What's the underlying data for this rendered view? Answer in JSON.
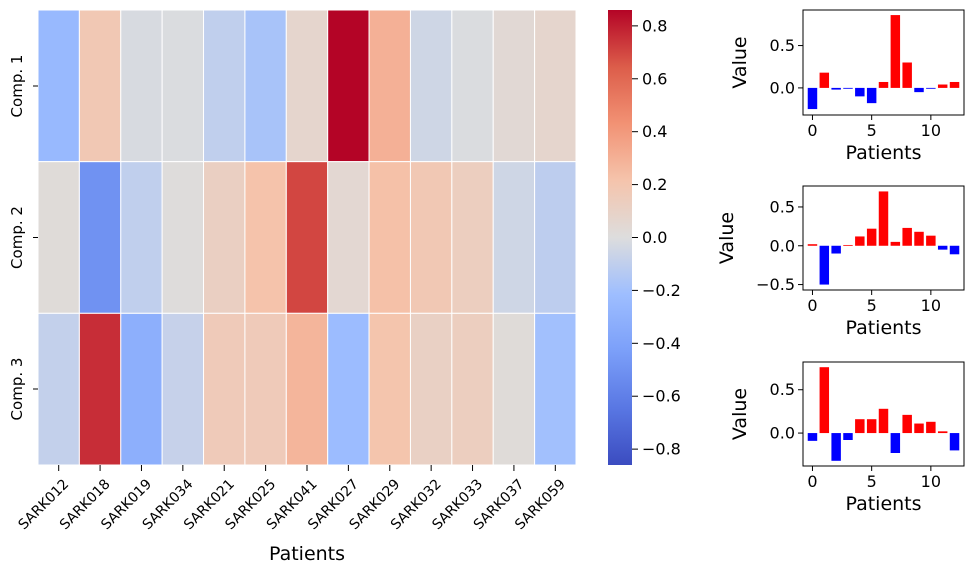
{
  "chart_data": [
    {
      "type": "heatmap",
      "xlabel": "Patients",
      "ylabel": "",
      "rows": [
        "Comp. 1",
        "Comp. 2",
        "Comp. 3"
      ],
      "columns": [
        "SARK012",
        "SARK018",
        "SARK019",
        "SARK034",
        "SARK021",
        "SARK025",
        "SARK041",
        "SARK027",
        "SARK029",
        "SARK032",
        "SARK033",
        "SARK037",
        "SARK059"
      ],
      "values": [
        [
          -0.25,
          0.18,
          -0.02,
          -0.01,
          -0.1,
          -0.18,
          0.07,
          0.86,
          0.3,
          -0.05,
          -0.01,
          0.04,
          0.07
        ],
        [
          0.02,
          -0.5,
          -0.1,
          0.01,
          0.12,
          0.22,
          0.7,
          0.05,
          0.23,
          0.18,
          0.13,
          -0.05,
          -0.11
        ],
        [
          -0.09,
          0.76,
          -0.32,
          -0.08,
          0.16,
          0.16,
          0.28,
          -0.23,
          0.21,
          0.11,
          0.13,
          0.02,
          -0.2
        ]
      ],
      "colorbar": {
        "colormap": "coolwarm",
        "vmin": -0.86,
        "vmax": 0.86,
        "ticks": [
          "0.8",
          "0.6",
          "0.4",
          "0.2",
          "0.0",
          "−0.2",
          "−0.4",
          "−0.6",
          "−0.8"
        ]
      },
      "grid": false
    },
    {
      "type": "bar",
      "title": "",
      "xlabel": "Patients",
      "ylabel": "Value",
      "x": [
        0,
        1,
        2,
        3,
        4,
        5,
        6,
        7,
        8,
        9,
        10,
        11,
        12
      ],
      "values": [
        -0.25,
        0.18,
        -0.02,
        -0.01,
        -0.1,
        -0.18,
        0.07,
        0.86,
        0.3,
        -0.05,
        -0.01,
        0.04,
        0.07
      ],
      "ylim": [
        -0.32,
        0.92
      ],
      "yticks": [
        "0.5",
        "0.0"
      ],
      "xticks": [
        "0",
        "5",
        "10"
      ],
      "positive_color": "#ff0000",
      "negative_color": "#0000ff"
    },
    {
      "type": "bar",
      "title": "",
      "xlabel": "Patients",
      "ylabel": "Value",
      "x": [
        0,
        1,
        2,
        3,
        4,
        5,
        6,
        7,
        8,
        9,
        10,
        11,
        12
      ],
      "values": [
        0.02,
        -0.5,
        -0.1,
        0.01,
        0.12,
        0.22,
        0.7,
        0.05,
        0.23,
        0.18,
        0.13,
        -0.05,
        -0.11
      ],
      "ylim": [
        -0.57,
        0.77
      ],
      "yticks": [
        "0.5",
        "0.0",
        "−0.5"
      ],
      "xticks": [
        "0",
        "5",
        "10"
      ],
      "positive_color": "#ff0000",
      "negative_color": "#0000ff"
    },
    {
      "type": "bar",
      "title": "",
      "xlabel": "Patients",
      "ylabel": "Value",
      "x": [
        0,
        1,
        2,
        3,
        4,
        5,
        6,
        7,
        8,
        9,
        10,
        11,
        12
      ],
      "values": [
        -0.09,
        0.76,
        -0.32,
        -0.08,
        0.16,
        0.16,
        0.28,
        -0.23,
        0.21,
        0.11,
        0.13,
        0.02,
        -0.2
      ],
      "ylim": [
        -0.38,
        0.82
      ],
      "yticks": [
        "0.5",
        "0.0"
      ],
      "xticks": [
        "0",
        "5",
        "10"
      ],
      "positive_color": "#ff0000",
      "negative_color": "#0000ff"
    }
  ]
}
